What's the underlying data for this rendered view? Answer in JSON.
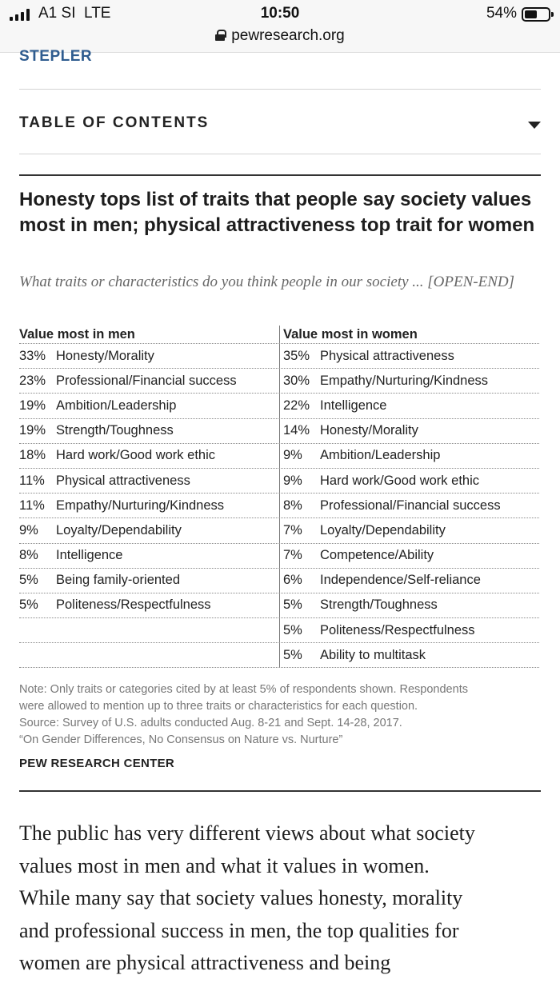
{
  "status_bar": {
    "carrier": "A1 SI",
    "network": "LTE",
    "time": "10:50",
    "battery": "54%",
    "battery_level": 0.54,
    "url": "pewresearch.org"
  },
  "author": "STEPLER",
  "toc": {
    "label": "TABLE OF CONTENTS"
  },
  "figure": {
    "title": "Honesty tops list of traits that people say society values most in men; physical attractiveness top trait for women",
    "subtitle": "What traits or characteristics do you think people in our society ... [OPEN-END]",
    "men_header": "Value most in men",
    "women_header": "Value most in women",
    "men": [
      {
        "pct": "33%",
        "trait": "Honesty/Morality"
      },
      {
        "pct": "23%",
        "trait": "Professional/Financial success"
      },
      {
        "pct": "19%",
        "trait": "Ambition/Leadership"
      },
      {
        "pct": "19%",
        "trait": "Strength/Toughness"
      },
      {
        "pct": "18%",
        "trait": "Hard work/Good work ethic"
      },
      {
        "pct": "11%",
        "trait": "Physical attractiveness"
      },
      {
        "pct": "11%",
        "trait": "Empathy/Nurturing/Kindness"
      },
      {
        "pct": "9%",
        "trait": "Loyalty/Dependability"
      },
      {
        "pct": "8%",
        "trait": "Intelligence"
      },
      {
        "pct": "5%",
        "trait": "Being family-oriented"
      },
      {
        "pct": "5%",
        "trait": "Politeness/Respectfulness"
      },
      {
        "pct": "",
        "trait": ""
      },
      {
        "pct": "",
        "trait": ""
      }
    ],
    "women": [
      {
        "pct": "35%",
        "trait": "Physical attractiveness"
      },
      {
        "pct": "30%",
        "trait": "Empathy/Nurturing/Kindness"
      },
      {
        "pct": "22%",
        "trait": "Intelligence"
      },
      {
        "pct": "14%",
        "trait": "Honesty/Morality"
      },
      {
        "pct": "9%",
        "trait": "Ambition/Leadership"
      },
      {
        "pct": "9%",
        "trait": "Hard work/Good work ethic"
      },
      {
        "pct": "8%",
        "trait": "Professional/Financial success"
      },
      {
        "pct": "7%",
        "trait": "Loyalty/Dependability"
      },
      {
        "pct": "7%",
        "trait": "Competence/Ability"
      },
      {
        "pct": "6%",
        "trait": "Independence/Self-reliance"
      },
      {
        "pct": "5%",
        "trait": "Strength/Toughness"
      },
      {
        "pct": "5%",
        "trait": "Politeness/Respectfulness"
      },
      {
        "pct": "5%",
        "trait": "Ability to multitask"
      }
    ],
    "note_lines": [
      "Note: Only traits or categories cited by at least 5% of respondents shown. Respondents",
      "were allowed to mention up to three traits or characteristics for each question.",
      "Source: Survey of U.S. adults conducted Aug. 8-21 and Sept. 14-28, 2017.",
      "“On Gender Differences, No Consensus on Nature vs. Nurture”"
    ],
    "org": "PEW RESEARCH CENTER"
  },
  "article_lines": [
    "The public has very different views about what society",
    "values most in men and what it values in women.",
    "While many say that society values honesty, morality",
    "and professional success in men, the top qualities for",
    "women are physical attractiveness and being"
  ]
}
